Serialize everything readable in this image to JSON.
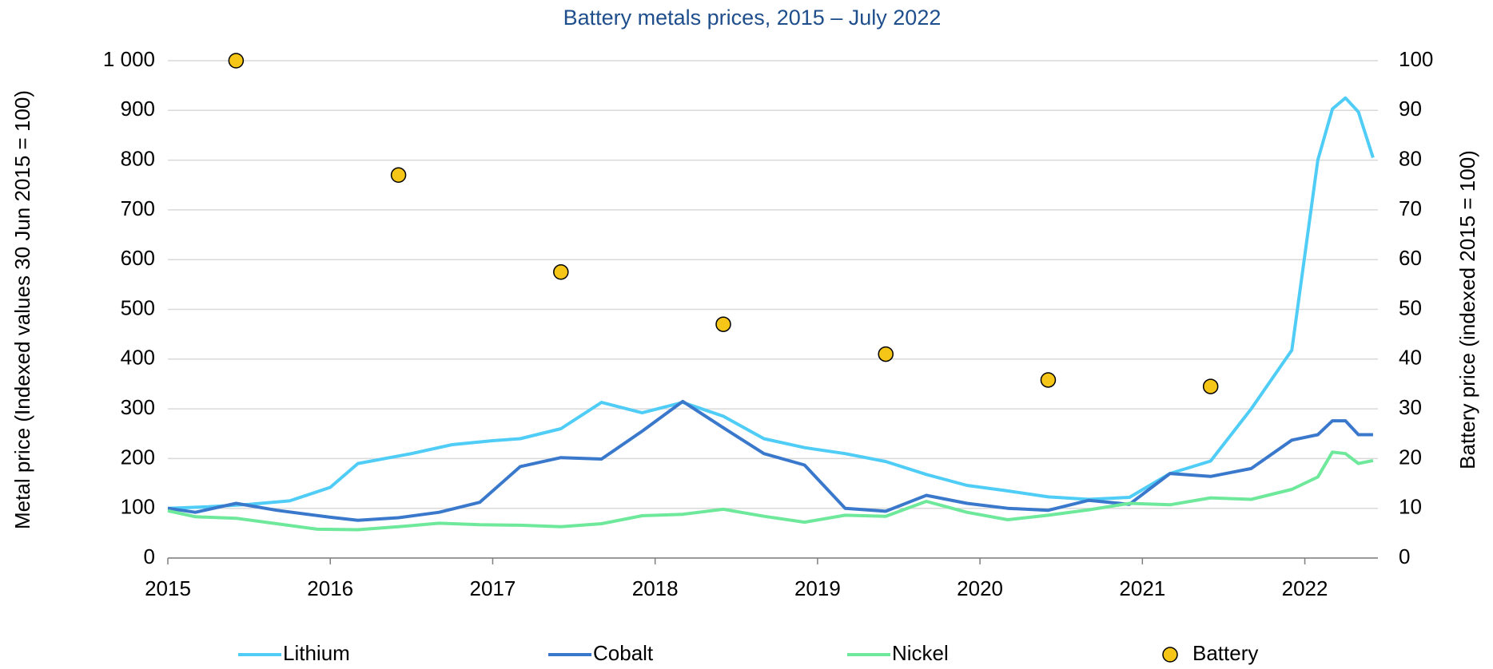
{
  "chart_data": {
    "type": "line",
    "title": "Battery metals prices, 2015 – July 2022",
    "ylabel": "Metal price (Indexed values 30 Jun 2015 = 100)",
    "y2label": "Battery price (indexed 2015 = 100)",
    "xlim": [
      2015,
      2022.45
    ],
    "xticks": [
      2015,
      2016,
      2017,
      2018,
      2019,
      2020,
      2021,
      2022
    ],
    "ylim": [
      0,
      1000
    ],
    "yticks": [
      0,
      100,
      200,
      300,
      400,
      500,
      600,
      700,
      800,
      900,
      {
        "value": 1000,
        "label": "1 000"
      }
    ],
    "y2lim": [
      0,
      100
    ],
    "y2ticks": [
      0,
      10,
      20,
      30,
      40,
      50,
      60,
      70,
      80,
      90,
      100
    ],
    "grid": true,
    "legend": "bottom",
    "series": [
      {
        "name": "Lithium",
        "color": "#4fcdf6",
        "type": "line",
        "x": [
          2015,
          2015.25,
          2015.5,
          2015.75,
          2016,
          2016.17,
          2016.5,
          2016.75,
          2017,
          2017.17,
          2017.42,
          2017.67,
          2017.92,
          2018.17,
          2018.42,
          2018.67,
          2018.92,
          2019.17,
          2019.42,
          2019.67,
          2019.92,
          2020.17,
          2020.42,
          2020.67,
          2020.92,
          2021.17,
          2021.42,
          2021.67,
          2021.92,
          2022.08,
          2022.17,
          2022.25,
          2022.33,
          2022.42
        ],
        "values": [
          100,
          103,
          108,
          115,
          142,
          190,
          210,
          228,
          236,
          240,
          260,
          313,
          292,
          313,
          285,
          240,
          222,
          210,
          194,
          168,
          146,
          135,
          123,
          118,
          122,
          170,
          195,
          300,
          418,
          800,
          903,
          925,
          897,
          805
        ]
      },
      {
        "name": "Cobalt",
        "color": "#3a78cc",
        "type": "line",
        "x": [
          2015,
          2015.17,
          2015.42,
          2015.67,
          2016,
          2016.17,
          2016.42,
          2016.67,
          2016.92,
          2017.17,
          2017.42,
          2017.67,
          2017.92,
          2018.17,
          2018.42,
          2018.67,
          2018.92,
          2019.17,
          2019.42,
          2019.67,
          2019.92,
          2020.17,
          2020.42,
          2020.67,
          2020.92,
          2021.17,
          2021.42,
          2021.67,
          2021.92,
          2022.08,
          2022.17,
          2022.25,
          2022.33,
          2022.42
        ],
        "values": [
          100,
          92,
          110,
          96,
          82,
          76,
          81,
          92,
          112,
          184,
          202,
          199,
          255,
          315,
          262,
          210,
          187,
          100,
          94,
          126,
          110,
          100,
          96,
          116,
          108,
          170,
          164,
          180,
          237,
          248,
          276,
          276,
          248,
          248
        ]
      },
      {
        "name": "Nickel",
        "color": "#6ee89a",
        "type": "line",
        "x": [
          2015,
          2015.17,
          2015.42,
          2015.67,
          2015.92,
          2016.17,
          2016.42,
          2016.67,
          2016.92,
          2017.17,
          2017.42,
          2017.67,
          2017.92,
          2018.17,
          2018.42,
          2018.67,
          2018.92,
          2019.17,
          2019.42,
          2019.67,
          2019.92,
          2020.17,
          2020.42,
          2020.67,
          2020.92,
          2021.17,
          2021.42,
          2021.67,
          2021.92,
          2022.08,
          2022.17,
          2022.25,
          2022.33,
          2022.42
        ],
        "values": [
          95,
          83,
          80,
          69,
          58,
          57,
          63,
          70,
          67,
          66,
          63,
          69,
          85,
          88,
          98,
          84,
          72,
          86,
          84,
          114,
          92,
          77,
          86,
          97,
          110,
          107,
          121,
          118,
          138,
          163,
          213,
          210,
          190,
          196
        ]
      },
      {
        "name": "Battery",
        "color": "#f5c518",
        "type": "scatter",
        "axis": "y2",
        "x": [
          2015.42,
          2016.42,
          2017.42,
          2018.42,
          2019.42,
          2020.42,
          2021.42
        ],
        "values": [
          100,
          77,
          57.5,
          47,
          41,
          35.8,
          34.5
        ]
      }
    ]
  }
}
